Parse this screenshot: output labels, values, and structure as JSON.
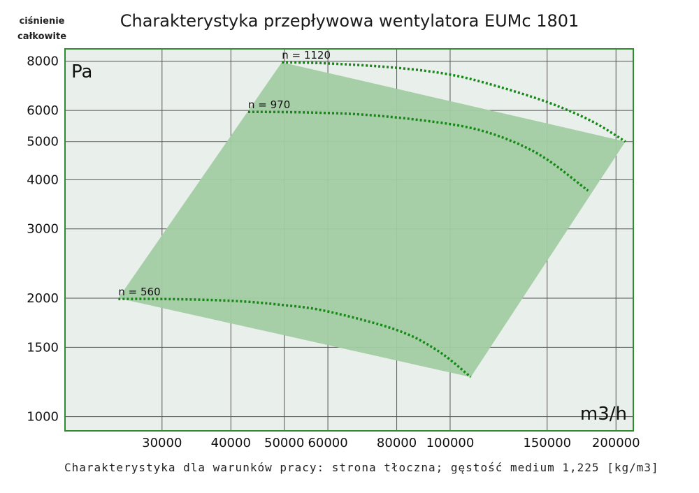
{
  "chart_data": {
    "type": "line",
    "title": "Charakterystyka przepływowa wentylatora EUMc 1801",
    "ylabel": "ciśnienie całkowite",
    "y_unit": "Pa",
    "x_unit": "m3/h",
    "footnote": "Charakterystyka dla warunków pracy: strona tłoczna; gęstość medium 1,225 [kg/m3]",
    "x_scale": "log",
    "y_scale": "log",
    "xlim": [
      20000,
      215000
    ],
    "ylim": [
      920,
      8600
    ],
    "x_ticks": [
      30000,
      40000,
      50000,
      60000,
      80000,
      100000,
      150000,
      200000
    ],
    "x_tick_labels": [
      "30000",
      "40000",
      "50000",
      "60000",
      "80000",
      "100000",
      "150000",
      "200000"
    ],
    "y_ticks": [
      1000,
      1500,
      2000,
      3000,
      4000,
      5000,
      6000,
      8000
    ],
    "y_tick_labels": [
      "1000",
      "1500",
      "2000",
      "3000",
      "4000",
      "5000",
      "6000",
      "8000"
    ],
    "grid": true,
    "colors": {
      "plot_bg": "#e9efea",
      "frame": "#2e8b2e",
      "grid": "#555555",
      "area": "#a2cca3",
      "curve": "#138a13"
    },
    "operating_area": [
      [
        25000,
        2000
      ],
      [
        49500,
        7950
      ],
      [
        208000,
        5000
      ],
      [
        109000,
        1260
      ]
    ],
    "series": [
      {
        "name": "n = 1120",
        "points": [
          [
            49500,
            7950
          ],
          [
            60000,
            7900
          ],
          [
            80000,
            7700
          ],
          [
            100000,
            7400
          ],
          [
            120000,
            6950
          ],
          [
            150000,
            6300
          ],
          [
            180000,
            5650
          ],
          [
            208000,
            5000
          ]
        ]
      },
      {
        "name": "n = 970",
        "points": [
          [
            43000,
            5950
          ],
          [
            55000,
            5930
          ],
          [
            70000,
            5850
          ],
          [
            90000,
            5650
          ],
          [
            110000,
            5400
          ],
          [
            130000,
            5000
          ],
          [
            150000,
            4500
          ],
          [
            178000,
            3750
          ]
        ]
      },
      {
        "name": "n = 560",
        "points": [
          [
            25000,
            1990
          ],
          [
            30000,
            1990
          ],
          [
            40000,
            1970
          ],
          [
            50000,
            1920
          ],
          [
            60000,
            1850
          ],
          [
            80000,
            1660
          ],
          [
            95000,
            1470
          ],
          [
            109000,
            1260
          ]
        ]
      }
    ]
  }
}
